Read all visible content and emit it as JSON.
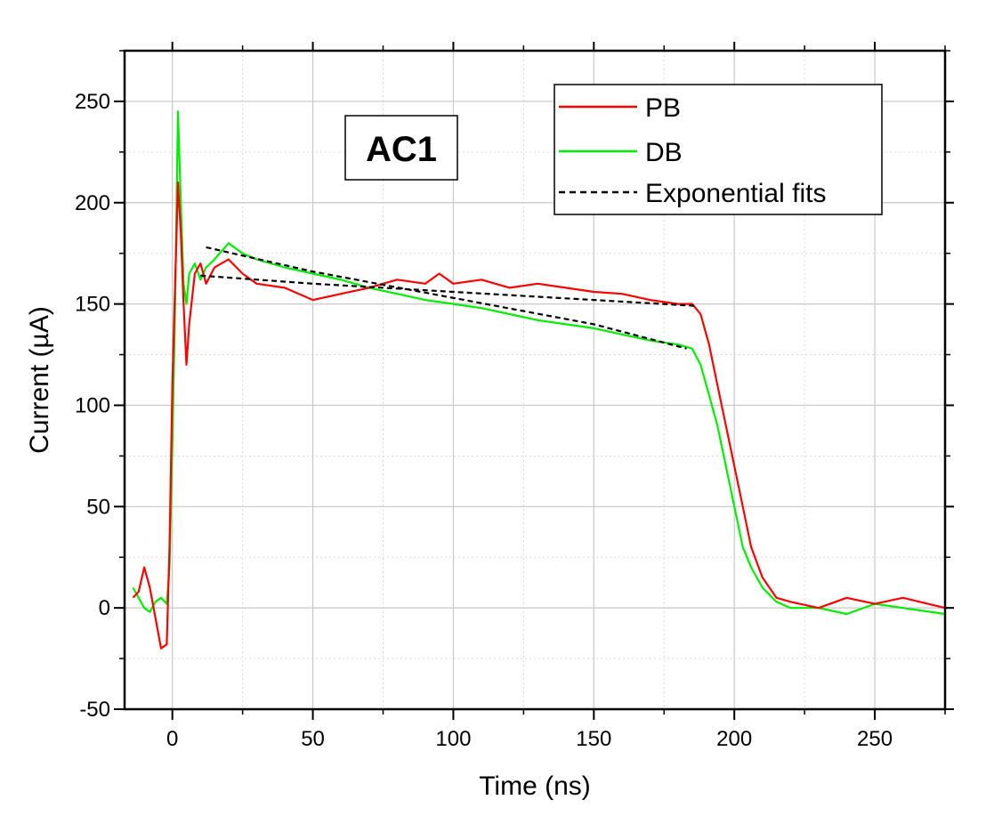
{
  "chart_data": {
    "type": "line",
    "title": "",
    "xlabel": "Time (ns)",
    "ylabel": "Current (µA)",
    "xlim": [
      -17,
      275
    ],
    "ylim": [
      -50,
      275
    ],
    "x_ticks": [
      0,
      50,
      100,
      150,
      200,
      250
    ],
    "y_ticks": [
      -50,
      0,
      50,
      100,
      150,
      200,
      250
    ],
    "x_tick_labels": [
      "0",
      "50",
      "100",
      "150",
      "200",
      "250"
    ],
    "y_tick_labels": [
      "-50",
      "0",
      "50",
      "100",
      "150",
      "200",
      "250"
    ],
    "grid": true,
    "annotation": "AC1",
    "legend": {
      "position": "top-right",
      "entries": [
        "PB",
        "DB",
        "Exponential fits"
      ]
    },
    "series": [
      {
        "name": "PB",
        "color": "#ff0000",
        "style": "solid",
        "x": [
          -14,
          -12,
          -10,
          -8,
          -6,
          -4,
          -2,
          -1,
          0,
          1,
          2,
          3,
          4,
          5,
          6,
          8,
          10,
          12,
          15,
          20,
          25,
          30,
          40,
          50,
          60,
          70,
          80,
          90,
          95,
          100,
          110,
          120,
          130,
          140,
          150,
          160,
          170,
          180,
          185,
          188,
          191,
          194,
          197,
          200,
          203,
          206,
          210,
          215,
          220,
          230,
          240,
          250,
          260,
          275
        ],
        "y": [
          5,
          8,
          20,
          10,
          -5,
          -20,
          -18,
          30,
          110,
          160,
          210,
          185,
          150,
          120,
          140,
          165,
          170,
          160,
          168,
          172,
          165,
          160,
          158,
          152,
          155,
          158,
          162,
          160,
          165,
          160,
          162,
          158,
          160,
          158,
          156,
          155,
          152,
          150,
          150,
          145,
          130,
          110,
          90,
          70,
          50,
          30,
          15,
          5,
          3,
          0,
          5,
          2,
          5,
          0
        ]
      },
      {
        "name": "DB",
        "color": "#00ee00",
        "style": "solid",
        "x": [
          -14,
          -12,
          -10,
          -8,
          -6,
          -4,
          -2,
          -1,
          0,
          1,
          2,
          3,
          4,
          5,
          6,
          8,
          10,
          12,
          15,
          20,
          25,
          30,
          40,
          50,
          60,
          70,
          80,
          90,
          100,
          110,
          120,
          130,
          140,
          150,
          160,
          170,
          180,
          185,
          188,
          191,
          194,
          197,
          200,
          203,
          206,
          210,
          215,
          220,
          230,
          240,
          250,
          260,
          275
        ],
        "y": [
          10,
          5,
          0,
          -2,
          3,
          5,
          2,
          20,
          80,
          150,
          245,
          200,
          160,
          150,
          165,
          170,
          162,
          168,
          172,
          180,
          175,
          172,
          168,
          165,
          162,
          158,
          155,
          152,
          150,
          148,
          145,
          142,
          140,
          138,
          135,
          132,
          130,
          128,
          120,
          105,
          90,
          70,
          50,
          30,
          20,
          10,
          3,
          0,
          0,
          -3,
          2,
          0,
          -3
        ]
      },
      {
        "name": "Exponential fits (PB)",
        "color": "#000000",
        "style": "dashed",
        "x": [
          10,
          50,
          100,
          150,
          187
        ],
        "y": [
          164,
          160,
          156,
          152,
          149
        ]
      },
      {
        "name": "Exponential fits (DB)",
        "color": "#000000",
        "style": "dashed",
        "x": [
          12,
          50,
          100,
          150,
          183
        ],
        "y": [
          178,
          166,
          153,
          140,
          128
        ]
      }
    ]
  }
}
